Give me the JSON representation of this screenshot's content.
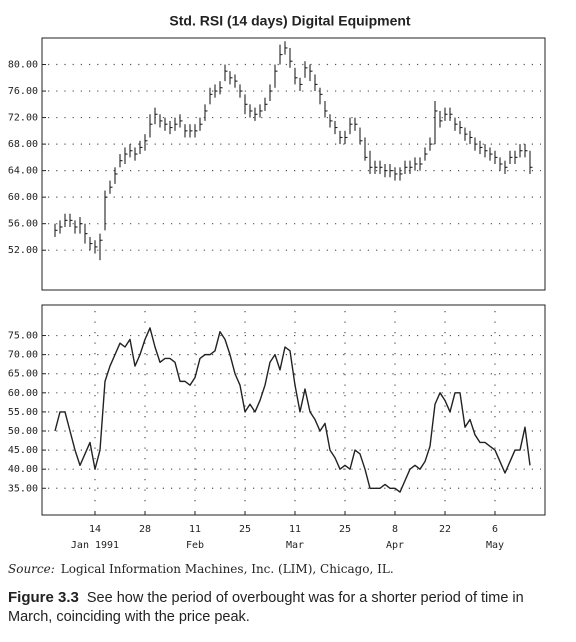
{
  "chart_data": [
    {
      "type": "ohlc",
      "title": "Std. RSI (14 days) Digital Equipment",
      "color": "#222222",
      "ylim": [
        46,
        84
      ],
      "yticks": [
        {
          "value": 52,
          "label": "52.00"
        },
        {
          "value": 56,
          "label": "56.00"
        },
        {
          "value": 60,
          "label": "60.00"
        },
        {
          "value": 64,
          "label": "64.00"
        },
        {
          "value": 68,
          "label": "68.00"
        },
        {
          "value": 72,
          "label": "72.00"
        },
        {
          "value": 76,
          "label": "76.00"
        },
        {
          "value": 80,
          "label": "80.00"
        }
      ],
      "grid": true,
      "high": [
        56,
        56.5,
        57.5,
        57.5,
        56.5,
        57,
        56,
        54,
        53.5,
        54.5,
        61,
        62.5,
        64.5,
        66.5,
        67.5,
        68,
        67.5,
        68.5,
        69.5,
        72.5,
        73.5,
        72.5,
        72,
        71.5,
        72,
        72.5,
        71,
        71,
        71,
        72,
        74,
        76.5,
        77,
        77.5,
        80,
        79,
        78.5,
        77,
        75.5,
        74,
        73.5,
        74,
        75,
        77,
        80,
        83,
        83.5,
        82.5,
        79.5,
        78,
        80.5,
        80,
        78.5,
        76.5,
        74.5,
        72.5,
        71.5,
        70,
        70,
        72,
        72,
        70.5,
        69,
        67,
        65.5,
        65.5,
        65,
        65,
        64.5,
        64.5,
        65.5,
        65.5,
        66,
        66,
        67.5,
        69,
        74.5,
        73,
        73.5,
        73.5,
        72,
        71.5,
        70.5,
        70,
        69,
        68.5,
        68,
        67.5,
        67,
        66,
        65.5,
        67,
        67,
        68,
        68,
        67
      ],
      "low": [
        54,
        54.5,
        55.5,
        55.5,
        54.5,
        54.5,
        53,
        52,
        51.5,
        50.5,
        55,
        60.5,
        62,
        64.5,
        65,
        66,
        65.5,
        66.5,
        67,
        69,
        71,
        70.5,
        70,
        69.5,
        70,
        70.5,
        69,
        69,
        69,
        70,
        71.5,
        74,
        75,
        75.5,
        77.5,
        77,
        76.5,
        75,
        72.5,
        72,
        71.5,
        72,
        73,
        74.5,
        76.5,
        80,
        81.5,
        79.5,
        77,
        76,
        78,
        77.5,
        76,
        74,
        72,
        70.5,
        69.5,
        68,
        68,
        69.5,
        70,
        68,
        65.5,
        63.5,
        63.5,
        63.5,
        63,
        63,
        62.5,
        62.5,
        63.5,
        63.5,
        64,
        64,
        65.5,
        67,
        68,
        70.5,
        71.5,
        71.5,
        70,
        69.5,
        68.5,
        68,
        67,
        66.5,
        66,
        65.5,
        65,
        64,
        63.5,
        65,
        65,
        66,
        66,
        63.5
      ],
      "close": [
        55,
        55.5,
        56.5,
        56.5,
        55.5,
        56,
        54.5,
        53,
        52.5,
        53.5,
        60,
        61.5,
        63.5,
        65.5,
        66.5,
        67,
        66.5,
        67.5,
        68.5,
        71,
        72.5,
        71.5,
        71,
        70.5,
        71,
        71.5,
        70,
        70,
        70,
        71,
        73,
        75.5,
        76,
        76.5,
        79,
        78,
        77.5,
        76,
        74,
        73,
        72.5,
        73,
        74,
        76,
        79,
        81.5,
        82.5,
        80.5,
        78,
        77,
        79.5,
        79,
        77,
        75.5,
        73,
        71.5,
        70.5,
        69,
        69,
        71,
        71,
        68.5,
        66,
        64.5,
        64.5,
        64.5,
        64,
        64,
        63.5,
        63.5,
        64.5,
        64.5,
        65,
        65,
        66.5,
        68,
        73,
        71.5,
        72.5,
        72.5,
        71,
        70.5,
        69.5,
        69,
        68,
        67.5,
        67,
        66.5,
        66,
        65,
        64.5,
        66,
        66,
        67,
        67,
        64.5
      ]
    },
    {
      "type": "line",
      "color": "#222222",
      "ylim": [
        28,
        83
      ],
      "yticks": [
        {
          "value": 35,
          "label": "35.00"
        },
        {
          "value": 40,
          "label": "40.00"
        },
        {
          "value": 45,
          "label": "45.00"
        },
        {
          "value": 50,
          "label": "50.00"
        },
        {
          "value": 55,
          "label": "55.00"
        },
        {
          "value": 60,
          "label": "60.00"
        },
        {
          "value": 65,
          "label": "65.00"
        },
        {
          "value": 70,
          "label": "70.00"
        },
        {
          "value": 75,
          "label": "75.00"
        }
      ],
      "grid": true,
      "categories": [
        null,
        null,
        null,
        null,
        null,
        null,
        null,
        null,
        "14",
        null,
        null,
        null,
        null,
        null,
        null,
        null,
        null,
        null,
        "28",
        null,
        null,
        null,
        null,
        null,
        null,
        null,
        null,
        null,
        "11",
        null,
        null,
        null,
        null,
        null,
        null,
        null,
        null,
        null,
        "25",
        null,
        null,
        null,
        null,
        null,
        null,
        null,
        null,
        null,
        "11",
        null,
        null,
        null,
        null,
        null,
        null,
        null,
        null,
        null,
        "25",
        null,
        null,
        null,
        null,
        null,
        null,
        null,
        null,
        null,
        "8",
        null,
        null,
        null,
        null,
        null,
        null,
        null,
        null,
        null,
        "22",
        null,
        null,
        null,
        null,
        null,
        null,
        null,
        null,
        null,
        "6",
        null,
        null,
        null,
        null,
        null,
        null,
        null
      ],
      "month_labels": [
        null,
        null,
        null,
        null,
        null,
        null,
        null,
        null,
        "Jan 1991",
        null,
        null,
        null,
        null,
        null,
        null,
        null,
        null,
        null,
        null,
        null,
        null,
        null,
        null,
        null,
        null,
        null,
        null,
        null,
        "Feb",
        null,
        null,
        null,
        null,
        null,
        null,
        null,
        null,
        null,
        null,
        null,
        null,
        null,
        null,
        null,
        null,
        null,
        null,
        null,
        "Mar",
        null,
        null,
        null,
        null,
        null,
        null,
        null,
        null,
        null,
        null,
        null,
        null,
        null,
        null,
        null,
        null,
        null,
        null,
        null,
        "Apr",
        null,
        null,
        null,
        null,
        null,
        null,
        null,
        null,
        null,
        null,
        null,
        null,
        null,
        null,
        null,
        null,
        null,
        null,
        null,
        "May",
        null,
        null,
        null,
        null,
        null,
        null,
        null
      ],
      "values": [
        50,
        55,
        55,
        50,
        45,
        41,
        44,
        47,
        40,
        45,
        63,
        67,
        70,
        73,
        72,
        74,
        67,
        70,
        74,
        77,
        72,
        68,
        69,
        69,
        68,
        63,
        63,
        62,
        64,
        69,
        70,
        70,
        71,
        76,
        74,
        70,
        65,
        62,
        55,
        57,
        55,
        58,
        62,
        68,
        70,
        66,
        72,
        71,
        62,
        55,
        61,
        55,
        53,
        50,
        52,
        45,
        43,
        40,
        41,
        40,
        45,
        44,
        40,
        35,
        35,
        35,
        36,
        35,
        35,
        34,
        37,
        40,
        41,
        40,
        42,
        46,
        57,
        60,
        58,
        55,
        60,
        60,
        51,
        53,
        49,
        47,
        47,
        46,
        45,
        42,
        39,
        42,
        45,
        45,
        51,
        41
      ]
    }
  ],
  "source_label": "Source:",
  "source": "Logical Information Machines, Inc. (LIM), Chicago, IL.",
  "figure_label": "Figure 3.3",
  "caption": "See how the period of overbought was for a shorter period of time in March, coinciding with the price peak."
}
